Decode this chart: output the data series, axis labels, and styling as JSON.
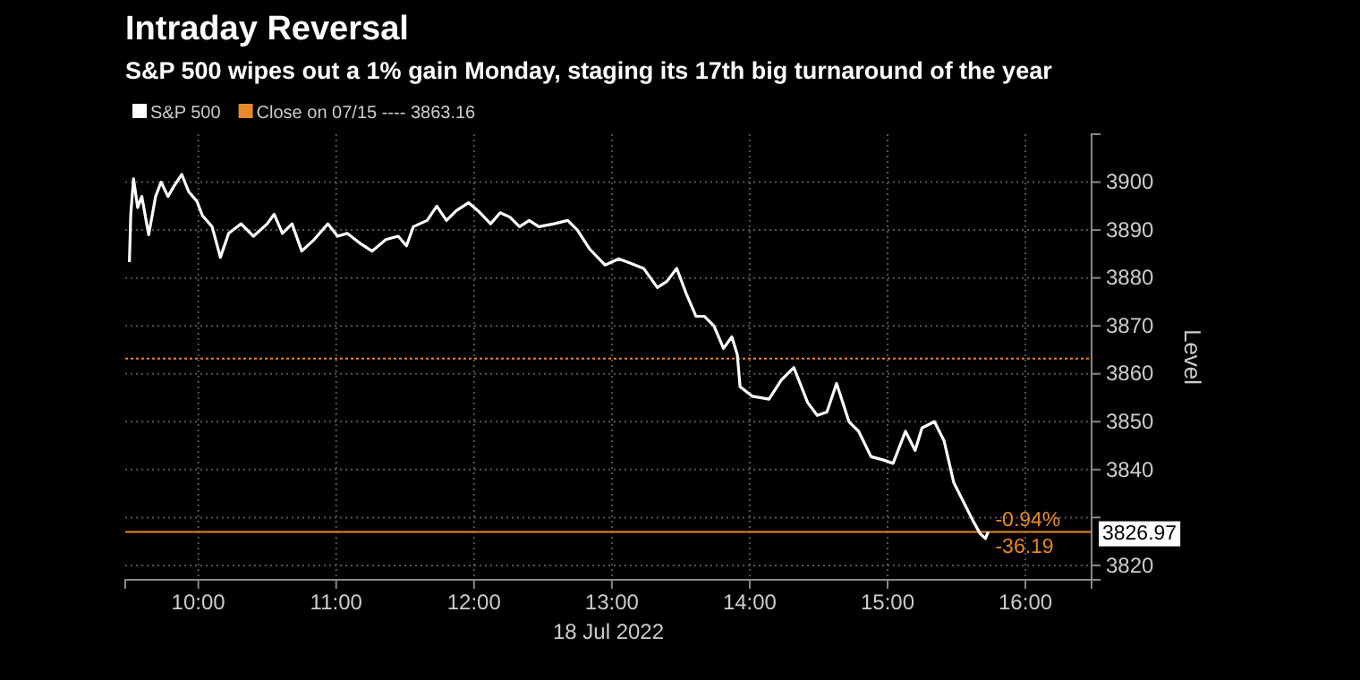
{
  "chart_data": {
    "type": "line",
    "title": "Intraday Reversal",
    "subtitle": "S&P 500 wipes out a 1% gain Monday, staging its 17th big turnaround of the year",
    "xlabel": "18 Jul 2022",
    "ylabel": "Level",
    "xlim": [
      9.47,
      16.48
    ],
    "ylim": [
      3817,
      3910
    ],
    "xticks": [
      {
        "value": 10,
        "label": "10:00"
      },
      {
        "value": 11,
        "label": "11:00"
      },
      {
        "value": 12,
        "label": "12:00"
      },
      {
        "value": 13,
        "label": "13:00"
      },
      {
        "value": 14,
        "label": "14:00"
      },
      {
        "value": 15,
        "label": "15:00"
      },
      {
        "value": 16,
        "label": "16:00"
      }
    ],
    "yticks": [
      3820,
      {
        "value": 3830,
        "label": null
      },
      3840,
      3850,
      3860,
      3870,
      3880,
      3890,
      3900
    ],
    "grid": true,
    "legend": "top left",
    "marker": "none",
    "line_style": "solid",
    "series": [
      {
        "name": "S&P 500",
        "color": "#ffffff",
        "x": [
          9.5,
          9.51,
          9.53,
          9.56,
          9.59,
          9.64,
          9.69,
          9.73,
          9.78,
          9.82,
          9.88,
          9.93,
          9.99,
          10.03,
          10.1,
          10.16,
          10.22,
          10.31,
          10.4,
          10.5,
          10.55,
          10.61,
          10.68,
          10.75,
          10.84,
          10.94,
          11.01,
          11.08,
          11.17,
          11.26,
          11.36,
          11.45,
          11.51,
          11.56,
          11.66,
          11.73,
          11.8,
          11.87,
          11.96,
          12.03,
          12.12,
          12.19,
          12.26,
          12.33,
          12.4,
          12.47,
          12.58,
          12.68,
          12.75,
          12.84,
          12.95,
          13.05,
          13.14,
          13.23,
          13.33,
          13.4,
          13.47,
          13.54,
          13.61,
          13.67,
          13.74,
          13.81,
          13.87,
          13.91,
          13.93,
          14.02,
          14.14,
          14.23,
          14.32,
          14.42,
          14.49,
          14.56,
          14.63,
          14.72,
          14.79,
          14.88,
          14.97,
          15.04,
          15.13,
          15.2,
          15.25,
          15.34,
          15.41,
          15.48,
          15.55,
          15.62,
          15.67,
          15.71,
          15.73
        ],
        "values": [
          3883.3,
          3893.3,
          3900.7,
          3894.7,
          3897,
          3889,
          3897,
          3900,
          3897,
          3899,
          3901.6,
          3898,
          3896,
          3893,
          3890.7,
          3884.3,
          3889.3,
          3891.3,
          3888.7,
          3891.3,
          3893.3,
          3889.3,
          3891.3,
          3885.6,
          3888,
          3891.3,
          3888.7,
          3889.3,
          3887.3,
          3885.6,
          3888,
          3888.7,
          3886.7,
          3890.7,
          3892,
          3895,
          3892,
          3894,
          3895.7,
          3894,
          3891.3,
          3893.6,
          3892.7,
          3890.7,
          3892,
          3890.7,
          3891.3,
          3892,
          3890,
          3886,
          3882.7,
          3884,
          3883,
          3882,
          3878,
          3879.3,
          3882,
          3876.7,
          3872,
          3872,
          3870,
          3865.3,
          3867.7,
          3864,
          3857.3,
          3855.3,
          3854.7,
          3858.7,
          3861.3,
          3854,
          3851.3,
          3852,
          3858,
          3850,
          3848,
          3842.7,
          3842,
          3841.3,
          3848,
          3844,
          3848.7,
          3850,
          3846,
          3837.3,
          3833.3,
          3829.3,
          3826.7,
          3825.6,
          3827
        ]
      }
    ],
    "ref_lines": [
      {
        "axis": "y",
        "value": 3863.16,
        "label": "Close on 07/15 ---- 3863.16",
        "color": "#e8882a",
        "line_style": "dotted"
      },
      {
        "axis": "y",
        "value": 3826.97,
        "color": "#e8882a",
        "line_style": "solid"
      }
    ],
    "annotations": [
      "-0.94%",
      "-36.19",
      "3826.97"
    ]
  }
}
